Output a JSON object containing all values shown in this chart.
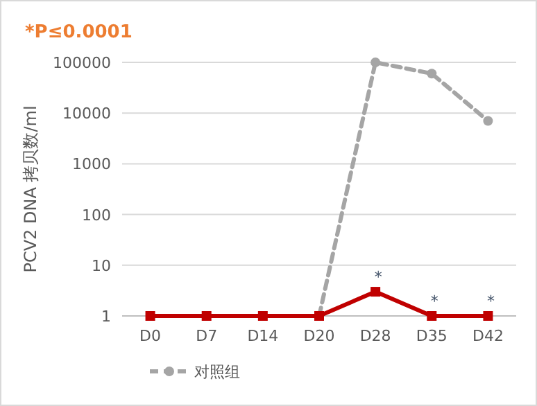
{
  "chart_data": {
    "type": "line",
    "title": "*P≤0.0001",
    "ylabel": "PCV2 DNA 拷贝数/ml",
    "categories": [
      "D0",
      "D7",
      "D14",
      "D20",
      "D28",
      "D35",
      "D42"
    ],
    "series": [
      {
        "name": "对照组",
        "color": "#a5a5a5",
        "marker": "circle",
        "line_style": "dashed",
        "values": [
          null,
          null,
          null,
          1,
          100000,
          60000,
          7000
        ]
      },
      {
        "color": "#c00000",
        "marker": "square",
        "line_style": "solid",
        "values": [
          1,
          1,
          1,
          1,
          3,
          1,
          1
        ]
      }
    ],
    "log": "y",
    "ylim": [
      1,
      100000
    ],
    "yticks": [
      1,
      10,
      100,
      1000,
      10000,
      100000
    ],
    "grid": "y",
    "legend": "bottom",
    "annotations": [
      {
        "text": "*",
        "x": "D28",
        "y": 3
      },
      {
        "text": "*",
        "x": "D35",
        "y": 1
      },
      {
        "text": "*",
        "x": "D42",
        "y": 1
      }
    ]
  }
}
